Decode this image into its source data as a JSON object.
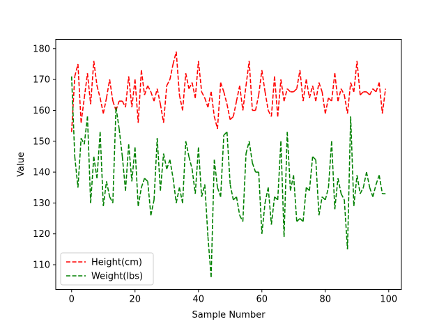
{
  "chart_data": {
    "type": "line",
    "xlabel": "Sample Number",
    "ylabel": "Value",
    "xlim": [
      -5,
      104
    ],
    "ylim": [
      102,
      183
    ],
    "xticks": [
      0,
      20,
      40,
      60,
      80,
      100
    ],
    "yticks": [
      110,
      120,
      130,
      140,
      150,
      160,
      170,
      180
    ],
    "grid": false,
    "legend_position": "lower-left",
    "line_style": "dashed",
    "series": [
      {
        "name": "Height(cm)",
        "color": "#ff0000",
        "x": [
          0,
          1,
          2,
          3,
          4,
          5,
          6,
          7,
          8,
          9,
          10,
          11,
          12,
          13,
          14,
          15,
          16,
          17,
          18,
          19,
          20,
          21,
          22,
          23,
          24,
          25,
          26,
          27,
          28,
          29,
          30,
          31,
          32,
          33,
          34,
          35,
          36,
          37,
          38,
          39,
          40,
          41,
          42,
          43,
          44,
          45,
          46,
          47,
          48,
          49,
          50,
          51,
          52,
          53,
          54,
          55,
          56,
          57,
          58,
          59,
          60,
          61,
          62,
          63,
          64,
          65,
          66,
          67,
          68,
          69,
          70,
          71,
          72,
          73,
          74,
          75,
          76,
          77,
          78,
          79,
          80,
          81,
          82,
          83,
          84,
          85,
          86,
          87,
          88,
          89,
          90,
          91,
          92,
          93,
          94,
          95,
          96,
          97,
          98,
          99
        ],
        "values": [
          153,
          171,
          175,
          156,
          164,
          172,
          162,
          176,
          168,
          164,
          159,
          164,
          170,
          163,
          160,
          163,
          163,
          161,
          171,
          161,
          170,
          156,
          173,
          165,
          168,
          166,
          163,
          167,
          162,
          156,
          168,
          170,
          175,
          179,
          165,
          160,
          172,
          167,
          169,
          164,
          176,
          166,
          164,
          161,
          166,
          158,
          154,
          169,
          166,
          162,
          157,
          158,
          163,
          168,
          160,
          168,
          176,
          160,
          160,
          165,
          173,
          166,
          160,
          158,
          171,
          158,
          170,
          163,
          167,
          166,
          166,
          167,
          173,
          163,
          170,
          164,
          168,
          163,
          169,
          166,
          159,
          164,
          163,
          172,
          163,
          167,
          165,
          159,
          169,
          166,
          176,
          165,
          166,
          166,
          165,
          167,
          166,
          169,
          159,
          167
        ]
      },
      {
        "name": "Weight(lbs)",
        "color": "#008000",
        "x": [
          0,
          1,
          2,
          3,
          4,
          5,
          6,
          7,
          8,
          9,
          10,
          11,
          12,
          13,
          14,
          15,
          16,
          17,
          18,
          19,
          20,
          21,
          22,
          23,
          24,
          25,
          26,
          27,
          28,
          29,
          30,
          31,
          32,
          33,
          34,
          35,
          36,
          37,
          38,
          39,
          40,
          41,
          42,
          43,
          44,
          45,
          46,
          47,
          48,
          49,
          50,
          51,
          52,
          53,
          54,
          55,
          56,
          57,
          58,
          59,
          60,
          61,
          62,
          63,
          64,
          65,
          66,
          67,
          68,
          69,
          70,
          71,
          72,
          73,
          74,
          75,
          76,
          77,
          78,
          79,
          80,
          81,
          82,
          83,
          84,
          85,
          86,
          87,
          88,
          89,
          90,
          91,
          92,
          93,
          94,
          95,
          96,
          97,
          98,
          99
        ],
        "values": [
          171,
          145,
          135,
          151,
          149,
          158,
          130,
          145,
          138,
          153,
          129,
          137,
          132,
          130,
          161,
          154,
          145,
          134,
          149,
          137,
          148,
          129,
          135,
          138,
          137,
          126,
          131,
          151,
          134,
          146,
          141,
          144,
          138,
          130,
          135,
          130,
          150,
          145,
          141,
          133,
          148,
          132,
          136,
          119,
          106,
          144,
          135,
          132,
          152,
          153,
          136,
          131,
          132,
          126,
          124,
          146,
          150,
          143,
          140,
          140,
          120,
          130,
          135,
          123,
          132,
          131,
          150,
          119,
          153,
          134,
          139,
          124,
          125,
          124,
          135,
          134,
          145,
          144,
          126,
          132,
          131,
          135,
          150,
          128,
          138,
          133,
          131,
          115,
          158,
          129,
          139,
          133,
          135,
          140,
          135,
          132,
          136,
          139,
          133,
          133
        ]
      }
    ]
  }
}
